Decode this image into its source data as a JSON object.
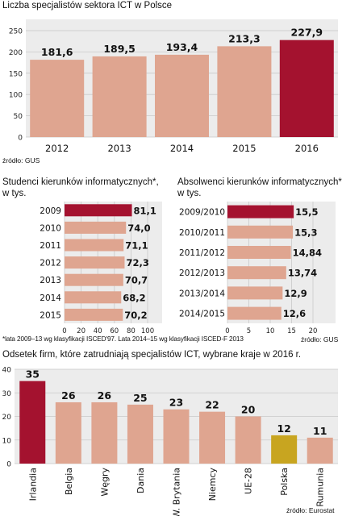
{
  "colors": {
    "bar": "#dfa590",
    "highlight": "#a4122f",
    "poland": "#c8a520",
    "panel": "#ececec",
    "grid": "#c9c9c9"
  },
  "chart1": {
    "title": "Liczba specjalistów sektora ICT w Polsce",
    "source": "źródło: GUS",
    "chart_data": {
      "type": "bar",
      "categories": [
        "2012",
        "2013",
        "2014",
        "2015",
        "2016"
      ],
      "values": [
        181.6,
        189.5,
        193.4,
        213.3,
        227.9
      ],
      "value_labels": [
        "181,6",
        "189,5",
        "193,4",
        "213,3",
        "227,9"
      ],
      "yticks": [
        "0",
        "50",
        "100",
        "150",
        "200",
        "250"
      ],
      "ylim": [
        0,
        250
      ],
      "grid": true,
      "highlight_index": 4
    }
  },
  "chart2": {
    "title_line1": "Studenci kierunków informatycznych*,",
    "title_line2": "w tys.",
    "chart_data": {
      "type": "bar",
      "orientation": "horizontal",
      "categories": [
        "2009",
        "2010",
        "2011",
        "2012",
        "2013",
        "2014",
        "2015"
      ],
      "values": [
        81.1,
        74.0,
        71.1,
        72.3,
        70.7,
        68.2,
        70.2
      ],
      "value_labels": [
        "81,1",
        "74,0",
        "71,1",
        "72,3",
        "70,7",
        "68,2",
        "70,2"
      ],
      "xticks": [
        "0",
        "20",
        "40",
        "60",
        "80",
        "100"
      ],
      "xlim": [
        0,
        100
      ],
      "grid": true,
      "highlight_index": 0
    }
  },
  "chart3": {
    "title_line1": "Absolwenci kierunków informatycznych*,",
    "title_line2": "w tys.",
    "chart_data": {
      "type": "bar",
      "orientation": "horizontal",
      "categories": [
        "2009/2010",
        "2010/2011",
        "2011/2012",
        "2012/2013",
        "2013/2014",
        "2014/2015"
      ],
      "values": [
        15.5,
        15.3,
        14.84,
        13.74,
        12.9,
        12.6
      ],
      "value_labels": [
        "15,5",
        "15,3",
        "14,84",
        "13,74",
        "12,9",
        "12,6"
      ],
      "xticks": [
        "0",
        "5",
        "10",
        "15",
        "20"
      ],
      "xlim": [
        0,
        20
      ],
      "grid": true,
      "highlight_index": 0
    }
  },
  "footnote": "*lata 2009–13 wg klasyfikacji ISCED'97. Lata 2014–15 wg klasyfikacji ISCED-F 2013",
  "source_gus": "źródło: GUS",
  "chart4": {
    "title": "Odsetek firm, które zatrudniają specjalistów ICT, wybrane kraje w 2016 r.",
    "source": "źródło: Eurostat",
    "chart_data": {
      "type": "bar",
      "categories": [
        "Irlandia",
        "Belgia",
        "Węgry",
        "Dania",
        "W. Brytania",
        "Niemcy",
        "UE-28",
        "Polska",
        "Rumunia"
      ],
      "values": [
        35,
        26,
        26,
        25,
        23,
        22,
        20,
        12,
        11
      ],
      "value_labels": [
        "35",
        "26",
        "26",
        "25",
        "23",
        "22",
        "20",
        "12",
        "11"
      ],
      "yticks": [
        "0",
        "10",
        "20",
        "30",
        "40"
      ],
      "ylim": [
        0,
        40
      ],
      "grid": true,
      "highlight_index": 0,
      "poland_index": 7
    }
  }
}
